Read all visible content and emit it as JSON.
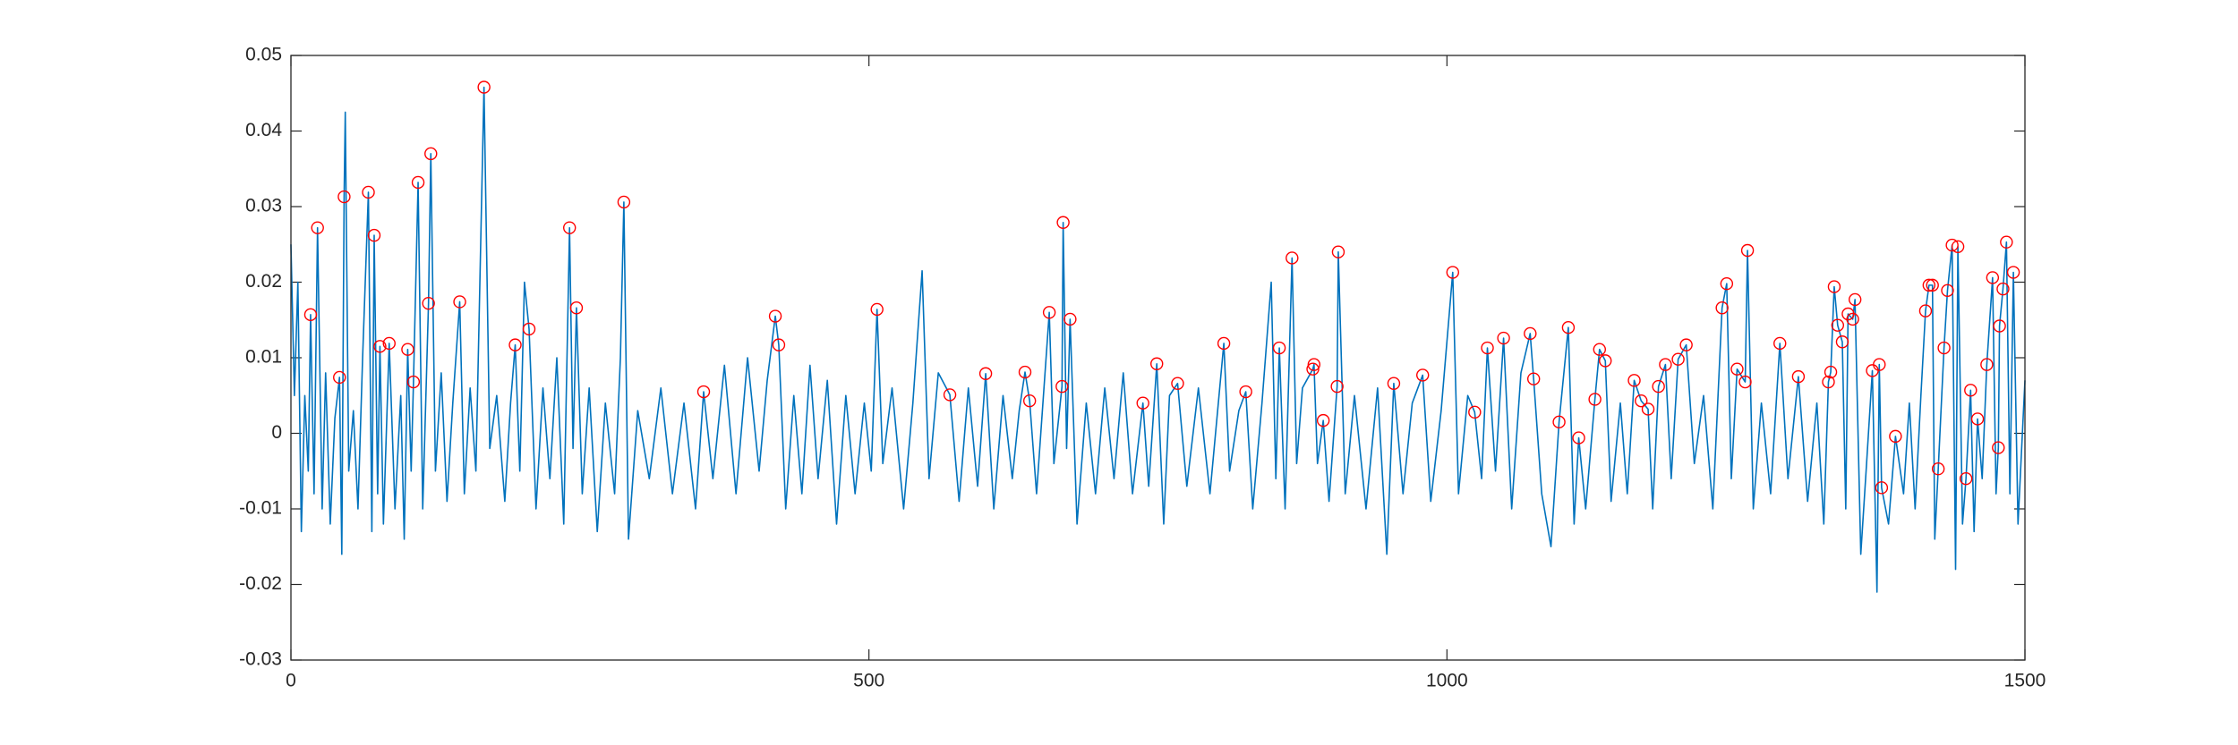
{
  "chart_data": {
    "type": "line",
    "xlim": [
      0,
      1500
    ],
    "xticks": [
      0,
      500,
      1000,
      1500
    ],
    "ylim": [
      -0.03,
      0.05
    ],
    "yticks": [
      -0.03,
      -0.02,
      -0.01,
      0,
      0.01,
      0.02,
      0.03,
      0.04,
      0.05
    ],
    "grid": false,
    "box": true,
    "series": [
      {
        "color": "#0072bd",
        "marker": "none",
        "x": [
          0,
          3,
          6,
          9,
          12,
          15,
          17,
          20,
          23,
          27,
          30,
          34,
          38,
          42,
          44,
          46,
          47,
          50,
          54,
          58,
          62,
          67,
          70,
          72,
          75,
          77,
          80,
          85,
          90,
          95,
          98,
          101,
          104,
          106,
          110,
          114,
          119,
          121,
          125,
          130,
          135,
          140,
          146,
          150,
          155,
          160,
          167,
          172,
          178,
          185,
          190,
          194,
          198,
          202,
          206,
          212,
          218,
          224,
          230,
          236,
          241,
          244,
          247,
          252,
          258,
          265,
          272,
          280,
          285,
          288,
          292,
          300,
          310,
          320,
          330,
          340,
          350,
          357,
          365,
          375,
          385,
          395,
          405,
          412,
          419,
          422,
          428,
          435,
          442,
          449,
          456,
          464,
          472,
          480,
          488,
          496,
          502,
          507,
          512,
          520,
          530,
          538,
          546,
          552,
          560,
          570,
          578,
          586,
          594,
          601,
          608,
          616,
          624,
          630,
          635,
          639,
          645,
          656,
          660,
          667,
          668,
          671,
          674,
          680,
          688,
          696,
          704,
          712,
          720,
          728,
          737,
          742,
          749,
          755,
          760,
          767,
          775,
          785,
          795,
          807,
          812,
          820,
          826,
          832,
          840,
          848,
          852,
          855,
          860,
          866,
          870,
          875,
          884,
          885,
          888,
          893,
          898,
          905,
          906,
          912,
          920,
          930,
          940,
          948,
          954,
          962,
          970,
          979,
          986,
          995,
          1005,
          1010,
          1018,
          1024,
          1030,
          1035,
          1042,
          1049,
          1056,
          1064,
          1072,
          1075,
          1082,
          1090,
          1097,
          1105,
          1110,
          1114,
          1120,
          1128,
          1132,
          1137,
          1142,
          1150,
          1156,
          1162,
          1168,
          1174,
          1178,
          1183,
          1189,
          1194,
          1200,
          1207,
          1214,
          1222,
          1230,
          1238,
          1242,
          1246,
          1251,
          1258,
          1260,
          1265,
          1272,
          1280,
          1288,
          1295,
          1304,
          1312,
          1320,
          1326,
          1330,
          1332,
          1335,
          1338,
          1342,
          1345,
          1347,
          1351,
          1353,
          1358,
          1363,
          1368,
          1372,
          1374,
          1376,
          1382,
          1388,
          1395,
          1400,
          1405,
          1410,
          1414,
          1417,
          1420,
          1422,
          1425,
          1430,
          1433,
          1437,
          1440,
          1442,
          1446,
          1449,
          1453,
          1456,
          1459,
          1463,
          1467,
          1472,
          1475,
          1477,
          1478,
          1481,
          1484,
          1487,
          1490,
          1494,
          1500
        ],
        "values": [
          0.025,
          0.005,
          0.02,
          -0.013,
          0.005,
          -0.005,
          0.0157,
          -0.008,
          0.0272,
          -0.01,
          0.008,
          -0.012,
          0.002,
          0.0074,
          -0.016,
          0.0313,
          0.0425,
          -0.005,
          0.003,
          -0.01,
          0.01,
          0.0319,
          -0.013,
          0.0262,
          -0.008,
          0.0115,
          -0.012,
          0.0119,
          -0.01,
          0.005,
          -0.014,
          0.0111,
          -0.005,
          0.0068,
          0.0332,
          -0.01,
          0.0172,
          0.037,
          -0.005,
          0.008,
          -0.009,
          0.004,
          0.0174,
          -0.008,
          0.006,
          -0.005,
          0.0458,
          -0.002,
          0.005,
          -0.009,
          0.004,
          0.0117,
          -0.005,
          0.02,
          0.0138,
          -0.01,
          0.006,
          -0.006,
          0.01,
          -0.012,
          0.0272,
          -0.002,
          0.0166,
          -0.008,
          0.006,
          -0.013,
          0.004,
          -0.008,
          0.01,
          0.0306,
          -0.014,
          0.003,
          -0.006,
          0.006,
          -0.008,
          0.004,
          -0.01,
          0.0055,
          -0.006,
          0.009,
          -0.008,
          0.01,
          -0.005,
          0.007,
          0.0155,
          0.0117,
          -0.01,
          0.005,
          -0.008,
          0.009,
          -0.006,
          0.007,
          -0.012,
          0.005,
          -0.008,
          0.004,
          -0.005,
          0.0164,
          -0.004,
          0.006,
          -0.01,
          0.004,
          0.0215,
          -0.006,
          0.008,
          0.0051,
          -0.009,
          0.006,
          -0.007,
          0.0079,
          -0.01,
          0.005,
          -0.006,
          0.003,
          0.0081,
          0.0043,
          -0.008,
          0.016,
          -0.004,
          0.0062,
          0.0279,
          -0.002,
          0.0151,
          -0.012,
          0.004,
          -0.008,
          0.006,
          -0.006,
          0.008,
          -0.008,
          0.004,
          -0.007,
          0.0092,
          -0.012,
          0.005,
          0.0066,
          -0.007,
          0.006,
          -0.008,
          0.0119,
          -0.005,
          0.003,
          0.0055,
          -0.01,
          0.004,
          0.02,
          -0.006,
          0.0113,
          -0.01,
          0.0232,
          -0.004,
          0.006,
          0.0085,
          0.0091,
          -0.004,
          0.0017,
          -0.009,
          0.0062,
          0.024,
          -0.008,
          0.005,
          -0.01,
          0.006,
          -0.016,
          0.0066,
          -0.008,
          0.004,
          0.0077,
          -0.009,
          0.003,
          0.0213,
          -0.008,
          0.005,
          0.0028,
          -0.006,
          0.0113,
          -0.005,
          0.0126,
          -0.01,
          0.008,
          0.0132,
          0.0072,
          -0.008,
          -0.015,
          0.0015,
          0.014,
          -0.012,
          -0.0006,
          -0.01,
          0.0045,
          0.0111,
          0.0096,
          -0.009,
          0.004,
          -0.008,
          0.007,
          0.0043,
          0.0032,
          -0.01,
          0.0062,
          0.0091,
          -0.006,
          0.0098,
          0.0117,
          -0.004,
          0.005,
          -0.01,
          0.0166,
          0.0198,
          -0.006,
          0.0085,
          0.0068,
          0.0242,
          -0.01,
          0.004,
          -0.008,
          0.0119,
          -0.006,
          0.0075,
          -0.009,
          0.004,
          -0.012,
          0.0068,
          0.0081,
          0.0194,
          0.0143,
          0.0121,
          -0.01,
          0.0158,
          0.0151,
          0.0177,
          -0.016,
          -0.004,
          0.0083,
          -0.021,
          0.0091,
          -0.0072,
          -0.012,
          -0.0004,
          -0.008,
          0.004,
          -0.01,
          0.005,
          0.0162,
          0.0196,
          0.0196,
          -0.014,
          -0.0047,
          0.0113,
          0.0189,
          0.0249,
          -0.018,
          0.0247,
          -0.012,
          -0.006,
          0.0057,
          -0.013,
          0.0019,
          -0.006,
          0.0091,
          0.0206,
          -0.008,
          -0.0019,
          0.0142,
          0.0191,
          0.0253,
          -0.008,
          0.0213,
          -0.012,
          0.007
        ]
      },
      {
        "color": "#ff0000",
        "marker": "circle",
        "line": "none",
        "x": [
          17,
          23,
          42,
          46,
          67,
          72,
          77,
          85,
          101,
          106,
          110,
          119,
          121,
          146,
          167,
          194,
          206,
          241,
          247,
          288,
          357,
          419,
          422,
          507,
          570,
          601,
          635,
          639,
          656,
          667,
          668,
          674,
          737,
          749,
          767,
          807,
          826,
          855,
          866,
          884,
          885,
          893,
          905,
          906,
          954,
          979,
          1005,
          1024,
          1035,
          1049,
          1072,
          1075,
          1097,
          1105,
          1114,
          1128,
          1132,
          1137,
          1162,
          1168,
          1174,
          1183,
          1189,
          1200,
          1207,
          1238,
          1242,
          1251,
          1258,
          1260,
          1288,
          1304,
          1330,
          1332,
          1335,
          1338,
          1342,
          1347,
          1351,
          1353,
          1368,
          1374,
          1376,
          1388,
          1414,
          1417,
          1420,
          1425,
          1430,
          1433,
          1437,
          1442,
          1449,
          1453,
          1459,
          1467,
          1472,
          1477,
          1478,
          1481,
          1484,
          1490
        ],
        "values": [
          0.0157,
          0.0272,
          0.0074,
          0.0313,
          0.0319,
          0.0262,
          0.0115,
          0.0119,
          0.0111,
          0.0068,
          0.0332,
          0.0172,
          0.037,
          0.0174,
          0.0458,
          0.0117,
          0.0138,
          0.0272,
          0.0166,
          0.0306,
          0.0055,
          0.0155,
          0.0117,
          0.0164,
          0.0051,
          0.0079,
          0.0081,
          0.0043,
          0.016,
          0.0062,
          0.0279,
          0.0151,
          0.004,
          0.0092,
          0.0066,
          0.0119,
          0.0055,
          0.0113,
          0.0232,
          0.0085,
          0.0091,
          0.0017,
          0.0062,
          0.024,
          0.0066,
          0.0077,
          0.0213,
          0.0028,
          0.0113,
          0.0126,
          0.0132,
          0.0072,
          0.0015,
          0.014,
          -0.0006,
          0.0045,
          0.0111,
          0.0096,
          0.007,
          0.0043,
          0.0032,
          0.0062,
          0.0091,
          0.0098,
          0.0117,
          0.0166,
          0.0198,
          0.0085,
          0.0068,
          0.0242,
          0.0119,
          0.0075,
          0.0068,
          0.0081,
          0.0194,
          0.0143,
          0.0121,
          0.0158,
          0.0151,
          0.0177,
          0.0083,
          0.0091,
          -0.0072,
          -0.0004,
          0.0162,
          0.0196,
          0.0196,
          -0.0047,
          0.0113,
          0.0189,
          0.0249,
          0.0247,
          -0.006,
          0.0057,
          0.0019,
          0.0091,
          0.0206,
          -0.0019,
          0.0142,
          0.0191,
          0.0253,
          0.0213
        ]
      }
    ]
  }
}
